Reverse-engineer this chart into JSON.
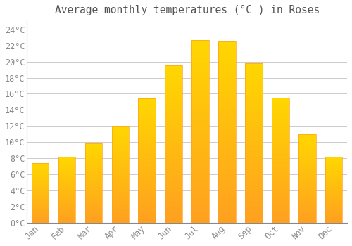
{
  "title": "Average monthly temperatures (°C ) in Roses",
  "months": [
    "Jan",
    "Feb",
    "Mar",
    "Apr",
    "May",
    "Jun",
    "Jul",
    "Aug",
    "Sep",
    "Oct",
    "Nov",
    "Dec"
  ],
  "values": [
    7.4,
    8.2,
    9.9,
    12.0,
    15.4,
    19.5,
    22.7,
    22.5,
    19.8,
    15.5,
    11.0,
    8.2
  ],
  "bar_color_top": "#FFD700",
  "bar_color_bottom": "#FFA020",
  "background_color": "#FFFFFF",
  "grid_color": "#CCCCCC",
  "text_color": "#888888",
  "title_color": "#555555",
  "ylim": [
    0,
    25
  ],
  "yticks": [
    0,
    2,
    4,
    6,
    8,
    10,
    12,
    14,
    16,
    18,
    20,
    22,
    24
  ],
  "title_fontsize": 10.5,
  "tick_fontsize": 8.5,
  "bar_width": 0.65,
  "figsize": [
    5.0,
    3.5
  ],
  "dpi": 100
}
